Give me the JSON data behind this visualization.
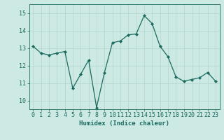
{
  "x": [
    0,
    1,
    2,
    3,
    4,
    5,
    6,
    7,
    8,
    9,
    10,
    11,
    12,
    13,
    14,
    15,
    16,
    17,
    18,
    19,
    20,
    21,
    22,
    23
  ],
  "y": [
    13.1,
    12.7,
    12.6,
    12.7,
    12.8,
    10.7,
    11.5,
    12.3,
    9.6,
    11.6,
    13.3,
    13.4,
    13.75,
    13.8,
    14.85,
    14.4,
    13.1,
    12.5,
    11.35,
    11.1,
    11.2,
    11.3,
    11.6,
    11.1
  ],
  "line_color": "#1a6b5e",
  "bg_color": "#cce9e4",
  "grid_color": "#b8d8d2",
  "xlabel": "Humidex (Indice chaleur)",
  "ylim": [
    9.5,
    15.5
  ],
  "yticks": [
    10,
    11,
    12,
    13,
    14,
    15
  ],
  "xticks": [
    0,
    1,
    2,
    3,
    4,
    5,
    6,
    7,
    8,
    9,
    10,
    11,
    12,
    13,
    14,
    15,
    16,
    17,
    18,
    19,
    20,
    21,
    22,
    23
  ],
  "xlabel_fontsize": 6.5,
  "tick_fontsize": 6.0,
  "marker_size": 2.0,
  "line_width": 0.9
}
